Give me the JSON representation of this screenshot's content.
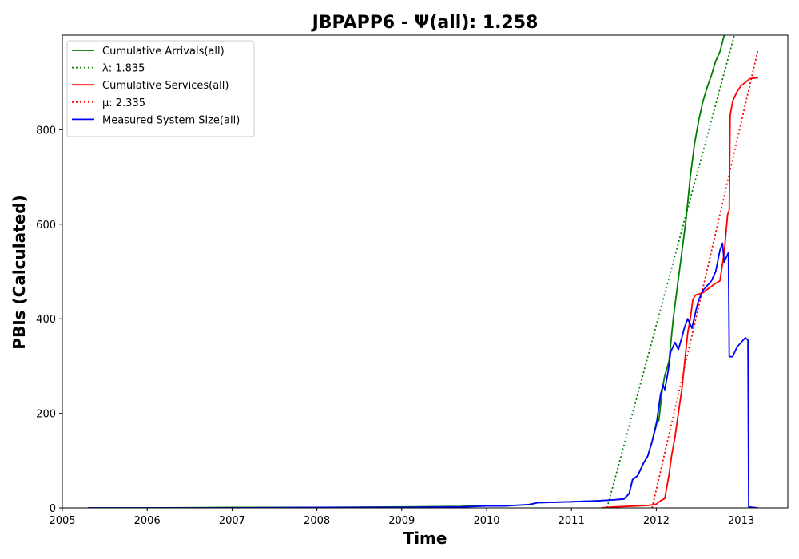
{
  "chart_data": {
    "type": "line",
    "title": "JBPAPP6 -  Ψ(all): 1.258",
    "xlabel": "Time",
    "ylabel": "PBIs (Calculated)",
    "xlim": [
      2005.0,
      2013.55
    ],
    "ylim": [
      0,
      1000
    ],
    "x_ticks": [
      2005,
      2006,
      2007,
      2008,
      2009,
      2010,
      2011,
      2012,
      2013
    ],
    "x_tick_labels": [
      "2005",
      "2006",
      "2007",
      "2008",
      "2009",
      "2010",
      "2011",
      "2012",
      "2013"
    ],
    "y_ticks": [
      0,
      200,
      400,
      600,
      800
    ],
    "y_tick_labels": [
      "0",
      "200",
      "400",
      "600",
      "800"
    ],
    "grid": false,
    "legend_position": "top-left",
    "series": [
      {
        "name": "Cumulative Arrivals(all)",
        "style": "solid",
        "color": "#008000",
        "points": [
          [
            2005.3,
            0
          ],
          [
            2006.0,
            0
          ],
          [
            2007.0,
            1
          ],
          [
            2008.0,
            1
          ],
          [
            2009.0,
            2
          ],
          [
            2009.7,
            3
          ],
          [
            2010.0,
            5
          ],
          [
            2010.2,
            4
          ],
          [
            2010.5,
            7
          ],
          [
            2010.6,
            11
          ],
          [
            2011.0,
            13
          ],
          [
            2011.3,
            15
          ],
          [
            2011.5,
            17
          ],
          [
            2011.62,
            19
          ],
          [
            2011.68,
            30
          ],
          [
            2011.72,
            60
          ],
          [
            2011.78,
            68
          ],
          [
            2011.85,
            95
          ],
          [
            2011.9,
            110
          ],
          [
            2011.95,
            140
          ],
          [
            2012.0,
            180
          ],
          [
            2012.03,
            185
          ],
          [
            2012.07,
            250
          ],
          [
            2012.1,
            280
          ],
          [
            2012.15,
            310
          ],
          [
            2012.2,
            400
          ],
          [
            2012.25,
            470
          ],
          [
            2012.3,
            540
          ],
          [
            2012.35,
            610
          ],
          [
            2012.4,
            700
          ],
          [
            2012.45,
            770
          ],
          [
            2012.5,
            820
          ],
          [
            2012.55,
            860
          ],
          [
            2012.6,
            890
          ],
          [
            2012.65,
            915
          ],
          [
            2012.7,
            945
          ],
          [
            2012.75,
            965
          ],
          [
            2012.8,
            1000
          ]
        ]
      },
      {
        "name": "λ: 1.835",
        "style": "dotted",
        "color": "#008000",
        "points": [
          [
            2011.42,
            0
          ],
          [
            2012.92,
            1000
          ]
        ]
      },
      {
        "name": "Cumulative Services(all)",
        "style": "solid",
        "color": "#ff0000",
        "points": [
          [
            2011.35,
            0
          ],
          [
            2011.5,
            2
          ],
          [
            2011.9,
            5
          ],
          [
            2012.0,
            8
          ],
          [
            2012.05,
            15
          ],
          [
            2012.1,
            20
          ],
          [
            2012.12,
            40
          ],
          [
            2012.15,
            70
          ],
          [
            2012.18,
            110
          ],
          [
            2012.22,
            150
          ],
          [
            2012.26,
            200
          ],
          [
            2012.3,
            250
          ],
          [
            2012.33,
            300
          ],
          [
            2012.37,
            370
          ],
          [
            2012.4,
            400
          ],
          [
            2012.43,
            440
          ],
          [
            2012.46,
            450
          ],
          [
            2012.55,
            455
          ],
          [
            2012.6,
            462
          ],
          [
            2012.7,
            475
          ],
          [
            2012.75,
            480
          ],
          [
            2012.8,
            540
          ],
          [
            2012.84,
            620
          ],
          [
            2012.86,
            630
          ],
          [
            2012.87,
            830
          ],
          [
            2012.9,
            860
          ],
          [
            2012.95,
            880
          ],
          [
            2013.0,
            893
          ],
          [
            2013.05,
            900
          ],
          [
            2013.1,
            908
          ],
          [
            2013.2,
            910
          ]
        ]
      },
      {
        "name": "μ: 2.335",
        "style": "dotted",
        "color": "#ff0000",
        "points": [
          [
            2011.95,
            0
          ],
          [
            2013.2,
            970
          ]
        ]
      },
      {
        "name": "Measured System Size(all)",
        "style": "solid",
        "color": "#0000ff",
        "points": [
          [
            2005.3,
            0
          ],
          [
            2006.0,
            0
          ],
          [
            2007.0,
            0
          ],
          [
            2008.0,
            1
          ],
          [
            2009.0,
            1
          ],
          [
            2009.7,
            2
          ],
          [
            2010.0,
            4
          ],
          [
            2010.2,
            4
          ],
          [
            2010.5,
            7
          ],
          [
            2010.6,
            11
          ],
          [
            2011.0,
            13
          ],
          [
            2011.3,
            15
          ],
          [
            2011.5,
            17
          ],
          [
            2011.62,
            19
          ],
          [
            2011.68,
            30
          ],
          [
            2011.72,
            60
          ],
          [
            2011.78,
            68
          ],
          [
            2011.85,
            95
          ],
          [
            2011.9,
            110
          ],
          [
            2011.95,
            140
          ],
          [
            2012.0,
            175
          ],
          [
            2012.05,
            240
          ],
          [
            2012.08,
            260
          ],
          [
            2012.1,
            250
          ],
          [
            2012.14,
            290
          ],
          [
            2012.17,
            330
          ],
          [
            2012.22,
            350
          ],
          [
            2012.26,
            335
          ],
          [
            2012.3,
            360
          ],
          [
            2012.33,
            380
          ],
          [
            2012.37,
            400
          ],
          [
            2012.42,
            380
          ],
          [
            2012.47,
            420
          ],
          [
            2012.5,
            440
          ],
          [
            2012.55,
            460
          ],
          [
            2012.6,
            470
          ],
          [
            2012.65,
            480
          ],
          [
            2012.7,
            500
          ],
          [
            2012.75,
            545
          ],
          [
            2012.78,
            560
          ],
          [
            2012.8,
            520
          ],
          [
            2012.85,
            540
          ],
          [
            2012.86,
            320
          ],
          [
            2012.9,
            320
          ],
          [
            2012.95,
            340
          ],
          [
            2013.0,
            350
          ],
          [
            2013.05,
            360
          ],
          [
            2013.08,
            355
          ],
          [
            2013.09,
            2
          ],
          [
            2013.2,
            0
          ]
        ]
      }
    ]
  }
}
